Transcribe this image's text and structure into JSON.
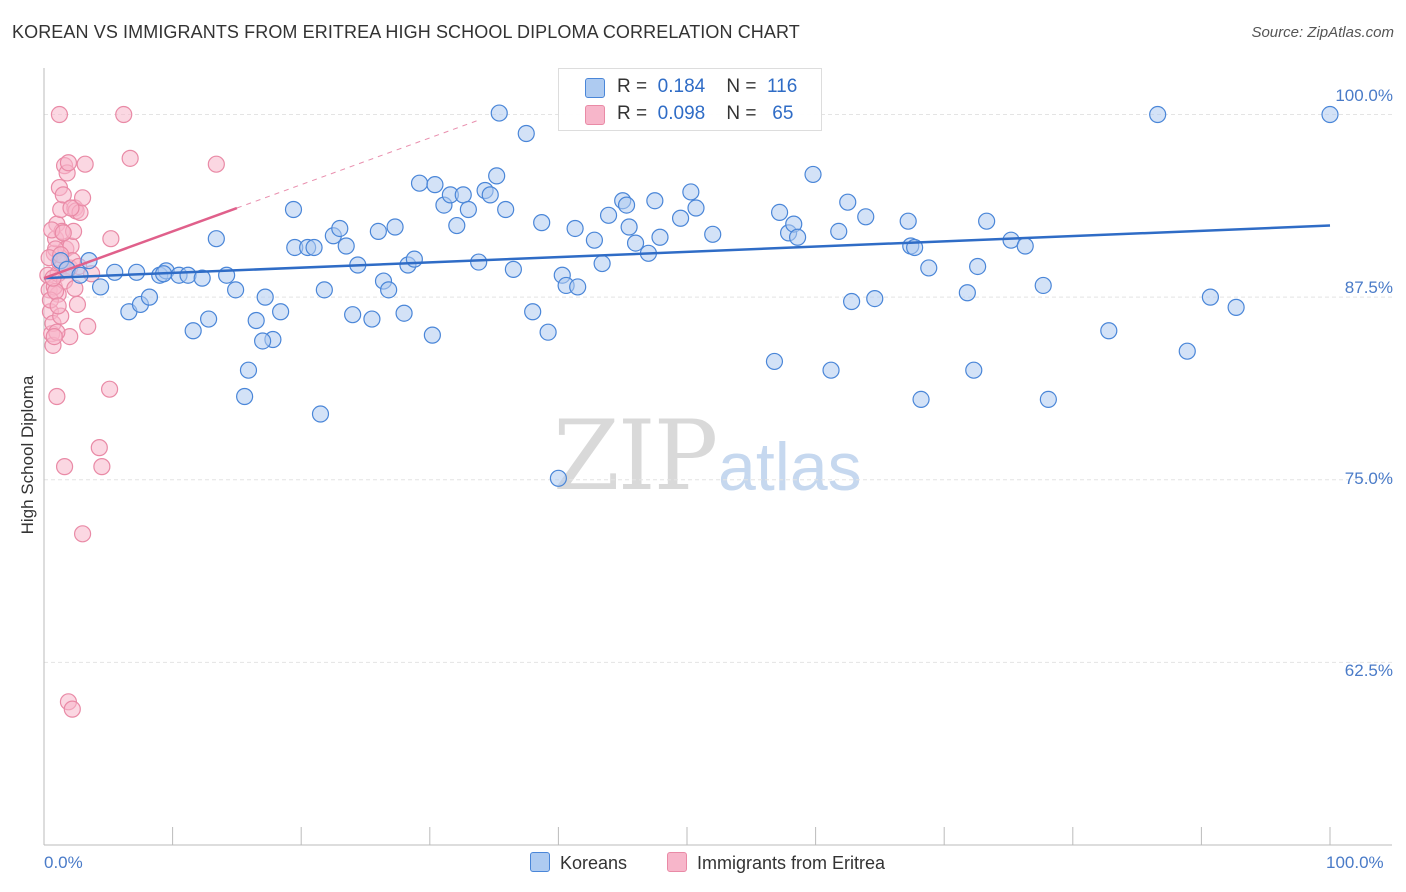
{
  "title": "KOREAN VS IMMIGRANTS FROM ERITREA HIGH SCHOOL DIPLOMA CORRELATION CHART",
  "source": "Source: ZipAtlas.com",
  "watermark": {
    "zip": "ZIP",
    "atlas": "atlas"
  },
  "legend": {
    "rows": [
      {
        "r_label": "R =",
        "r_value": "0.184",
        "n_label": "N =",
        "n_value": "116"
      },
      {
        "r_label": "R =",
        "r_value": "0.098",
        "n_label": "N =",
        "n_value": "65"
      }
    ]
  },
  "bottom_legend": {
    "koreans": "Koreans",
    "eritrea": "Immigrants from Eritrea"
  },
  "colors": {
    "koreans_fill": "#aecbf1",
    "koreans_stroke": "#4a86d8",
    "koreans_line": "#2f6cc6",
    "eritrea_fill": "#f7b6ca",
    "eritrea_stroke": "#e98aa6",
    "eritrea_line": "#e0608b",
    "tick_text": "#4a7bc8"
  },
  "chart_data": {
    "type": "scatter",
    "title": "KOREAN VS IMMIGRANTS FROM ERITREA HIGH SCHOOL DIPLOMA CORRELATION CHART",
    "xlabel": "",
    "ylabel": "High School Diploma",
    "xlim": [
      0,
      100
    ],
    "ylim": [
      50,
      102.5
    ],
    "x_tick_labels": [
      "0.0%",
      "100.0%"
    ],
    "y_tick_labels": [
      "100.0%",
      "87.5%",
      "75.0%",
      "62.5%"
    ],
    "y_ticks": [
      100,
      87.5,
      75,
      62.5
    ],
    "grid": true,
    "legend_position": "top-center",
    "series": [
      {
        "name": "Koreans",
        "trend": {
          "x": [
            0,
            100
          ],
          "y": [
            88.8,
            92.4
          ]
        },
        "points": [
          [
            1.3,
            90.0
          ],
          [
            1.8,
            89.4
          ],
          [
            2.8,
            89.0
          ],
          [
            3.5,
            90.0
          ],
          [
            4.4,
            88.2
          ],
          [
            5.5,
            89.2
          ],
          [
            6.6,
            86.5
          ],
          [
            7.2,
            89.2
          ],
          [
            7.5,
            87.0
          ],
          [
            8.2,
            87.5
          ],
          [
            9.0,
            89.0
          ],
          [
            9.5,
            89.3
          ],
          [
            10.5,
            89.0
          ],
          [
            11.2,
            89.0
          ],
          [
            11.6,
            85.2
          ],
          [
            12.8,
            86.0
          ],
          [
            13.4,
            91.5
          ],
          [
            14.2,
            89.0
          ],
          [
            14.9,
            88.0
          ],
          [
            15.9,
            82.5
          ],
          [
            15.6,
            80.7
          ],
          [
            16.5,
            85.9
          ],
          [
            17.2,
            87.5
          ],
          [
            17.8,
            84.6
          ],
          [
            18.4,
            86.5
          ],
          [
            19.4,
            93.5
          ],
          [
            19.5,
            90.9
          ],
          [
            20.5,
            90.9
          ],
          [
            21.0,
            90.9
          ],
          [
            21.5,
            79.5
          ],
          [
            21.8,
            88.0
          ],
          [
            22.5,
            91.7
          ],
          [
            23.0,
            92.2
          ],
          [
            23.5,
            91.0
          ],
          [
            24.0,
            86.3
          ],
          [
            24.4,
            89.7
          ],
          [
            25.5,
            86.0
          ],
          [
            26.0,
            92.0
          ],
          [
            26.4,
            88.6
          ],
          [
            26.8,
            88.0
          ],
          [
            27.3,
            92.3
          ],
          [
            28.0,
            86.4
          ],
          [
            28.3,
            89.7
          ],
          [
            28.8,
            90.1
          ],
          [
            29.2,
            95.3
          ],
          [
            30.2,
            84.9
          ],
          [
            30.4,
            95.2
          ],
          [
            31.1,
            93.8
          ],
          [
            31.6,
            94.5
          ],
          [
            32.1,
            92.4
          ],
          [
            32.6,
            94.5
          ],
          [
            33.0,
            93.5
          ],
          [
            33.8,
            89.9
          ],
          [
            34.3,
            94.8
          ],
          [
            34.7,
            94.5
          ],
          [
            35.2,
            95.8
          ],
          [
            35.9,
            93.5
          ],
          [
            36.5,
            89.4
          ],
          [
            37.5,
            98.7
          ],
          [
            38.0,
            86.5
          ],
          [
            38.7,
            92.6
          ],
          [
            39.2,
            85.1
          ],
          [
            40.3,
            89.0
          ],
          [
            40.6,
            88.3
          ],
          [
            41.3,
            92.2
          ],
          [
            41.5,
            88.2
          ],
          [
            42.8,
            91.4
          ],
          [
            43.4,
            89.8
          ],
          [
            43.9,
            93.1
          ],
          [
            45.0,
            94.1
          ],
          [
            45.3,
            93.8
          ],
          [
            46.0,
            91.2
          ],
          [
            47.0,
            90.5
          ],
          [
            47.5,
            94.1
          ],
          [
            47.9,
            91.6
          ],
          [
            49.5,
            92.9
          ],
          [
            50.3,
            94.7
          ],
          [
            50.7,
            93.6
          ],
          [
            52.0,
            91.8
          ],
          [
            56.8,
            83.1
          ],
          [
            57.2,
            93.3
          ],
          [
            57.9,
            91.9
          ],
          [
            58.3,
            92.5
          ],
          [
            58.6,
            91.6
          ],
          [
            59.8,
            95.9
          ],
          [
            61.2,
            82.5
          ],
          [
            61.8,
            92.0
          ],
          [
            62.5,
            94.0
          ],
          [
            62.8,
            87.2
          ],
          [
            63.9,
            93.0
          ],
          [
            64.6,
            87.4
          ],
          [
            67.2,
            92.7
          ],
          [
            67.4,
            91.0
          ],
          [
            67.7,
            90.9
          ],
          [
            68.2,
            80.5
          ],
          [
            68.8,
            89.5
          ],
          [
            71.8,
            87.8
          ],
          [
            72.3,
            82.5
          ],
          [
            72.6,
            89.6
          ],
          [
            73.3,
            92.7
          ],
          [
            75.2,
            91.4
          ],
          [
            76.3,
            91.0
          ],
          [
            77.7,
            88.3
          ],
          [
            78.1,
            80.5
          ],
          [
            82.8,
            85.2
          ],
          [
            88.9,
            83.8
          ],
          [
            90.7,
            87.5
          ],
          [
            92.7,
            86.8
          ],
          [
            86.6,
            100.0
          ],
          [
            100.0,
            100.0
          ],
          [
            40.0,
            75.1
          ],
          [
            9.3,
            89.1
          ],
          [
            12.3,
            88.8
          ],
          [
            35.4,
            100.1
          ],
          [
            17.0,
            84.5
          ],
          [
            45.5,
            92.3
          ]
        ]
      },
      {
        "name": "Immigrants from Eritrea",
        "trend": {
          "x": [
            0,
            15
          ],
          "y": [
            88.8,
            93.6
          ]
        },
        "points": [
          [
            0.3,
            89.0
          ],
          [
            0.4,
            88.0
          ],
          [
            0.5,
            86.5
          ],
          [
            0.6,
            85.0
          ],
          [
            0.7,
            84.2
          ],
          [
            0.8,
            90.5
          ],
          [
            0.9,
            91.5
          ],
          [
            1.0,
            92.5
          ],
          [
            1.1,
            87.7
          ],
          [
            1.2,
            95.0
          ],
          [
            1.3,
            93.5
          ],
          [
            1.4,
            92.0
          ],
          [
            1.5,
            94.5
          ],
          [
            1.6,
            96.5
          ],
          [
            1.7,
            90.8
          ],
          [
            1.8,
            96.0
          ],
          [
            1.9,
            96.7
          ],
          [
            2.0,
            89.5
          ],
          [
            2.1,
            91.0
          ],
          [
            2.2,
            90.0
          ],
          [
            2.3,
            92.0
          ],
          [
            2.4,
            93.6
          ],
          [
            2.5,
            93.4
          ],
          [
            2.6,
            87.0
          ],
          [
            2.7,
            89.6
          ],
          [
            2.8,
            93.3
          ],
          [
            3.0,
            94.3
          ],
          [
            3.2,
            96.6
          ],
          [
            3.4,
            85.5
          ],
          [
            1.2,
            100.0
          ],
          [
            6.2,
            100.0
          ],
          [
            6.7,
            97.0
          ],
          [
            13.4,
            96.6
          ],
          [
            5.2,
            91.5
          ],
          [
            5.1,
            81.2
          ],
          [
            3.7,
            89.1
          ],
          [
            4.3,
            77.2
          ],
          [
            4.5,
            75.9
          ],
          [
            1.6,
            75.9
          ],
          [
            3.0,
            71.3
          ],
          [
            1.9,
            59.8
          ],
          [
            2.2,
            59.3
          ],
          [
            1.0,
            80.7
          ],
          [
            0.7,
            85.7
          ],
          [
            0.8,
            88.2
          ],
          [
            1.1,
            89.1
          ],
          [
            0.9,
            90.8
          ],
          [
            1.4,
            89.8
          ],
          [
            0.5,
            87.3
          ],
          [
            1.6,
            88.6
          ],
          [
            2.0,
            84.8
          ],
          [
            1.3,
            86.2
          ],
          [
            0.6,
            92.1
          ],
          [
            0.9,
            87.9
          ],
          [
            1.0,
            85.1
          ],
          [
            1.2,
            89.9
          ],
          [
            1.5,
            91.9
          ],
          [
            1.8,
            89.4
          ],
          [
            2.1,
            93.6
          ],
          [
            0.4,
            90.2
          ],
          [
            0.7,
            88.8
          ],
          [
            1.1,
            86.9
          ],
          [
            1.3,
            90.4
          ],
          [
            0.8,
            84.8
          ],
          [
            2.4,
            88.1
          ]
        ]
      }
    ]
  }
}
